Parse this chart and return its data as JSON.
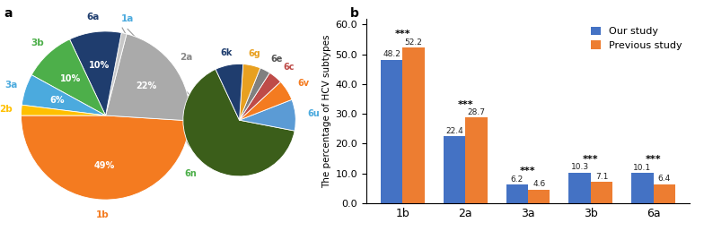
{
  "main_pie": {
    "labels": [
      "1b",
      "2a",
      "1a",
      "6a",
      "3b",
      "3a",
      "2b"
    ],
    "values": [
      49,
      22,
      1,
      10,
      10,
      6,
      2
    ],
    "colors": [
      "#F47B20",
      "#AAAAAA",
      "#C8C8C8",
      "#1F3D6E",
      "#4DAF4A",
      "#4BAADE",
      "#FFC000"
    ],
    "label_colors": [
      "#F47B20",
      "#888888",
      "#4BAADE",
      "#1F3D6E",
      "#4DAF4A",
      "#4BAADE",
      "#FFC000"
    ],
    "pct_labels": [
      "49%",
      "22%",
      "",
      "10%",
      "10%",
      "6%",
      ""
    ],
    "startangle": 180
  },
  "sub_pie": {
    "labels": [
      "6n",
      "6u",
      "6v",
      "6c",
      "6e",
      "6g",
      "6k"
    ],
    "values": [
      65,
      9,
      6,
      4,
      3,
      5,
      8
    ],
    "colors": [
      "#3B5E1A",
      "#5B9BD5",
      "#F47B20",
      "#BE4B48",
      "#808080",
      "#E8A020",
      "#1F3D6E"
    ],
    "label_colors": [
      "#4DAF4A",
      "#4BAADE",
      "#F47B20",
      "#BE4B48",
      "#555555",
      "#E8A020",
      "#1F3D6E"
    ],
    "startangle": 115
  },
  "bar_chart": {
    "categories": [
      "1b",
      "2a",
      "3a",
      "3b",
      "6a"
    ],
    "our_study": [
      48.2,
      22.4,
      6.2,
      10.3,
      10.1
    ],
    "previous_study": [
      52.2,
      28.7,
      4.6,
      7.1,
      6.4
    ],
    "our_color": "#4472C4",
    "prev_color": "#ED7D31",
    "ylabel": "The percentage of HCV subtypes",
    "ylim": [
      0,
      62
    ],
    "yticks": [
      0.0,
      10.0,
      20.0,
      30.0,
      40.0,
      50.0,
      60.0
    ],
    "significance": [
      "***",
      "***",
      "***",
      "***",
      "***"
    ],
    "legend_our": "Our study",
    "legend_prev": "Previous study"
  }
}
